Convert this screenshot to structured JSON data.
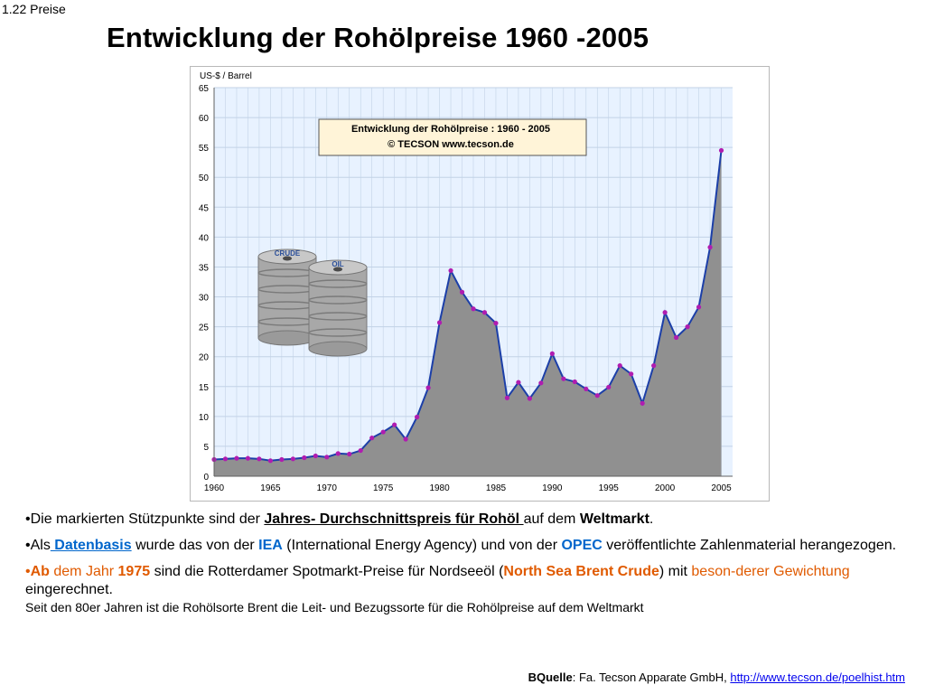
{
  "section_label": "1.22  Preise",
  "page_title": "Entwicklung der Rohölpreise 1960 -2005",
  "chart_data": {
    "type": "area",
    "ylabel": "US-$ / Barrel",
    "ylim": [
      0,
      65
    ],
    "yticks": [
      0,
      5,
      10,
      15,
      20,
      25,
      30,
      35,
      40,
      45,
      50,
      55,
      60,
      65
    ],
    "xtick_labels": [
      "1960",
      "1965",
      "1970",
      "1975",
      "1980",
      "1985",
      "1990",
      "1995",
      "2000",
      "2005"
    ],
    "legend_box": {
      "line1": "Entwicklung der Rohölpreise :   1960 - 2005",
      "line2": "© TECSON        www.tecson.de"
    },
    "barrel_labels": [
      "CRUDE",
      "OIL"
    ],
    "x": [
      1960,
      1961,
      1962,
      1963,
      1964,
      1965,
      1966,
      1967,
      1968,
      1969,
      1970,
      1971,
      1972,
      1973,
      1974,
      1975,
      1976,
      1977,
      1978,
      1979,
      1980,
      1981,
      1982,
      1983,
      1984,
      1985,
      1986,
      1987,
      1988,
      1989,
      1990,
      1991,
      1992,
      1993,
      1994,
      1995,
      1996,
      1997,
      1998,
      1999,
      2000,
      2001,
      2002,
      2003,
      2004,
      2005
    ],
    "values": [
      2.8,
      2.9,
      3.0,
      3.0,
      2.9,
      2.6,
      2.8,
      2.9,
      3.1,
      3.4,
      3.2,
      3.8,
      3.7,
      4.3,
      6.4,
      7.4,
      8.6,
      6.2,
      9.9,
      14.8,
      25.7,
      34.4,
      30.8,
      28.0,
      27.4,
      25.6,
      13.1,
      15.7,
      13.0,
      15.6,
      20.5,
      16.3,
      15.8,
      14.6,
      13.5,
      14.9,
      18.5,
      17.1,
      12.2,
      18.5,
      27.4,
      23.2,
      25.0,
      28.3,
      38.3,
      54.5
    ],
    "colors": {
      "plot_bg": "#e8f2ff",
      "area_fill": "#909090",
      "line": "#1c3fa8",
      "marker": "#b01cb0",
      "grid": "#c2d2e6"
    }
  },
  "bullets": {
    "b1_pre": "•Die markierten Stützpunkte sind der ",
    "b1_bold": "Jahres- Durchschnittspreis für Rohöl ",
    "b1_mid": "auf dem ",
    "b1_bold2": "Weltmarkt",
    "b1_end": ".",
    "b2_pre": "•Als",
    "b2_link": " Datenbasis",
    "b2_mid1": " wurde das von der ",
    "b2_iea": "IEA",
    "b2_mid2": " (International Energy Agency) und von der ",
    "b2_opec": "OPEC",
    "b2_end": " veröffentlichte Zahlenmaterial herangezogen.",
    "b3_dot": "•",
    "b3_ab": "Ab",
    "b3_dem": " dem Jahr ",
    "b3_year": "1975",
    "b3_mid": " sind die Rotterdamer Spotmarkt-Preise für Nordseeöl (",
    "b3_brent": "North Sea Brent Crude",
    "b3_mid2": ") mit ",
    "b3_beson": "beson-derer Gewichtung",
    "b3_end": " eingerechnet.",
    "b3_small": "Seit den 80er Jahren ist die Rohölsorte Brent die Leit- und Bezugssorte für die Rohölpreise auf dem Weltmarkt"
  },
  "source": {
    "label": "BQuelle",
    "text": ": Fa. Tecson Apparate GmbH,  ",
    "link": "http://www.tecson.de/poelhist.htm"
  }
}
